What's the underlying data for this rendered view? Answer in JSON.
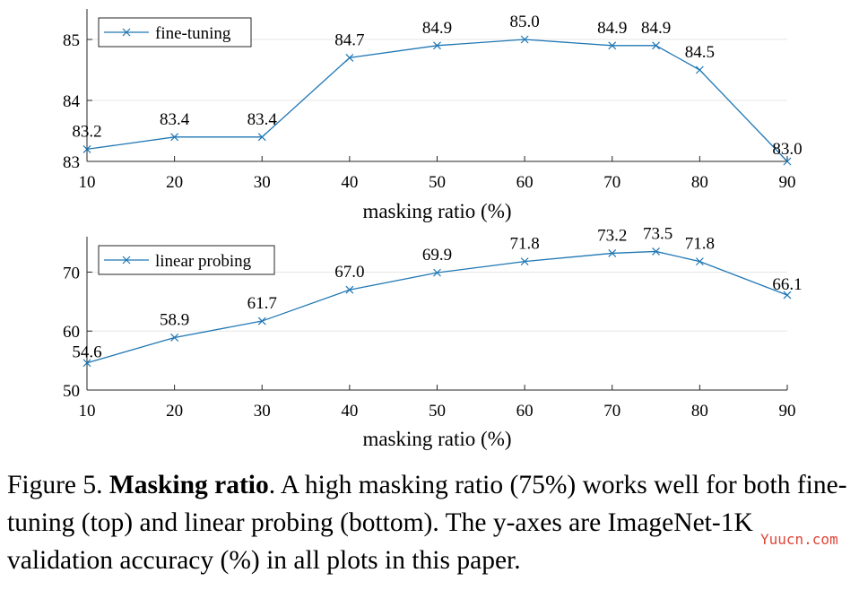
{
  "chart_data": [
    {
      "type": "line",
      "xlabel": "masking ratio (%)",
      "x": [
        10,
        20,
        30,
        40,
        50,
        60,
        70,
        75,
        80,
        90
      ],
      "series": [
        {
          "name": "fine-tuning",
          "values": [
            83.2,
            83.4,
            83.4,
            84.7,
            84.9,
            85.0,
            84.9,
            84.9,
            84.5,
            83.0
          ],
          "labels": [
            "83.2",
            "83.4",
            "83.4",
            "84.7",
            "84.9",
            "85.0",
            "84.9",
            "84.9",
            "84.5",
            "83.0"
          ]
        }
      ],
      "xticks": [
        10,
        20,
        30,
        40,
        50,
        60,
        70,
        80,
        90
      ],
      "yticks": [
        83,
        84,
        85
      ],
      "xlim": [
        10,
        90
      ],
      "ylim": [
        83,
        85.5
      ],
      "legend": "top-left",
      "grid": true,
      "color": "#1f77b4"
    },
    {
      "type": "line",
      "xlabel": "masking ratio (%)",
      "x": [
        10,
        20,
        30,
        40,
        50,
        60,
        70,
        75,
        80,
        90
      ],
      "series": [
        {
          "name": "linear probing",
          "values": [
            54.6,
            58.9,
            61.7,
            67.0,
            69.9,
            71.8,
            73.2,
            73.5,
            71.8,
            66.1
          ],
          "labels": [
            "54.6",
            "58.9",
            "61.7",
            "67.0",
            "69.9",
            "71.8",
            "73.2",
            "73.5",
            "71.8",
            "66.1"
          ]
        }
      ],
      "xticks": [
        10,
        20,
        30,
        40,
        50,
        60,
        70,
        80,
        90
      ],
      "yticks": [
        50,
        60,
        70
      ],
      "xlim": [
        10,
        90
      ],
      "ylim": [
        50,
        76
      ],
      "legend": "top-left",
      "grid": true,
      "color": "#1f77b4"
    }
  ],
  "caption": {
    "prefix": "Figure 5. ",
    "bold": "Masking ratio",
    "text": ". A high masking ratio (75%) works well for both fine-tuning (top) and linear probing (bottom). The y-axes are ImageNet-1K validation accuracy (%) in all plots in this paper."
  },
  "watermark": "Yuucn.com"
}
